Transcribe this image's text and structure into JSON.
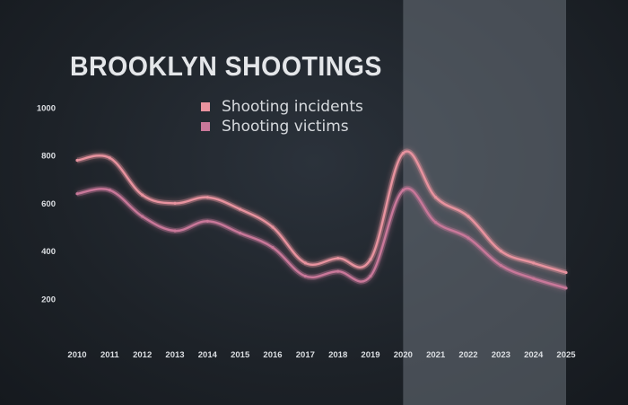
{
  "colors": {
    "incidents": "#e8939f",
    "victims": "#c9789a",
    "highlight": "#6b737c"
  },
  "chart_data": {
    "type": "line",
    "title": "BROOKLYN SHOOTINGS",
    "x": [
      2010,
      2011,
      2012,
      2013,
      2014,
      2015,
      2016,
      2017,
      2018,
      2019,
      2020,
      2021,
      2022,
      2023,
      2024,
      2025
    ],
    "x_tick_labels": [
      "2010",
      "2011",
      "2012",
      "2013",
      "2014",
      "2015",
      "2016",
      "2017",
      "2018",
      "2019",
      "2020",
      "2021",
      "2022",
      "2023",
      "2024",
      "2025"
    ],
    "y_ticks": [
      200,
      400,
      600,
      800,
      1000
    ],
    "y_tick_labels": [
      "200",
      "400",
      "600",
      "800",
      "1000"
    ],
    "ylim": [
      0,
      1000
    ],
    "xlim": [
      2010,
      2025
    ],
    "highlight_range": [
      2020,
      2025
    ],
    "grid": false,
    "legend_position": "top-center",
    "series": [
      {
        "name": "Shooting incidents",
        "values": [
          780,
          790,
          635,
          600,
          625,
          575,
          500,
          350,
          370,
          365,
          810,
          625,
          545,
          400,
          350,
          310
        ]
      },
      {
        "name": "Shooting victims",
        "values": [
          640,
          655,
          545,
          485,
          525,
          475,
          415,
          295,
          315,
          295,
          655,
          520,
          455,
          340,
          285,
          245
        ]
      }
    ]
  }
}
